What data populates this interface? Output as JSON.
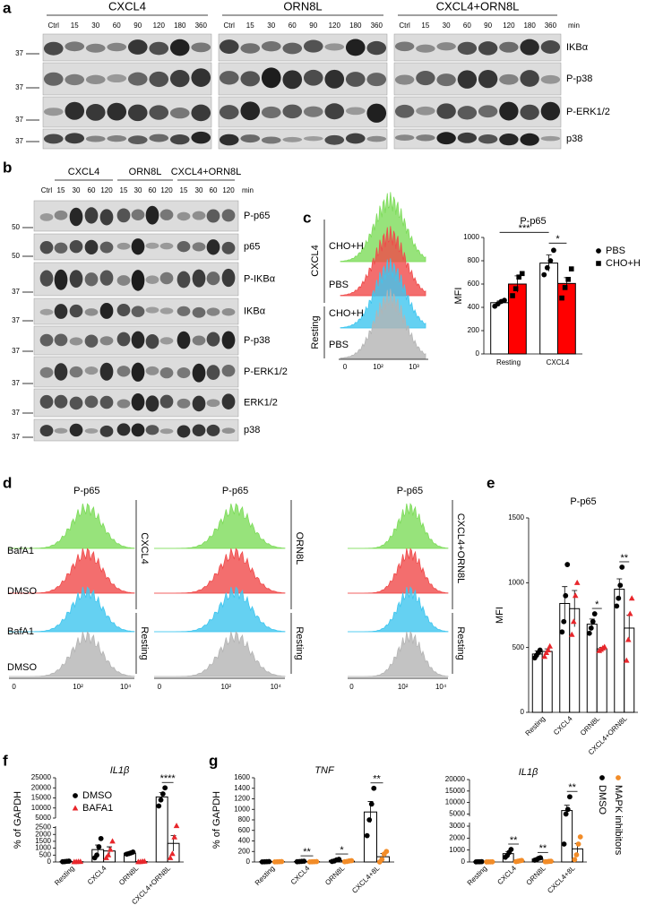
{
  "blot_a": {
    "label": "a",
    "groups": [
      "CXCL4",
      "ORN8L",
      "CXCL4+ORN8L"
    ],
    "lanes": [
      "Ctrl",
      "15",
      "30",
      "60",
      "90",
      "120",
      "180",
      "360"
    ],
    "unit": "min",
    "rows": [
      "IKBα",
      "P-p38",
      "P-ERK1/2",
      "p38"
    ],
    "markers": [
      "37",
      "37",
      "37",
      "37"
    ]
  },
  "blot_b": {
    "label": "b",
    "groups": [
      "CXCL4",
      "ORN8L",
      "CXCL4+ORN8L"
    ],
    "lanes": [
      "Ctrl",
      "15",
      "30",
      "60",
      "120",
      "15",
      "30",
      "60",
      "120",
      "15",
      "30",
      "60",
      "120"
    ],
    "unit": "min",
    "rows": [
      "P-p65",
      "p65",
      "P-IKBα",
      "IKBα",
      "P-p38",
      "P-ERK1/2",
      "ERK1/2",
      "p38"
    ],
    "markers": [
      "50",
      "50",
      "37",
      "37",
      "37",
      "37",
      "37",
      "37"
    ]
  },
  "flow_c": {
    "label": "c",
    "conditions": [
      "CXCL4",
      "Resting"
    ],
    "samples": [
      "CHO+H",
      "PBS",
      "CHO+H",
      "PBS"
    ],
    "xticks": [
      "0",
      "10²",
      "10³"
    ]
  },
  "flow_d": {
    "label": "d",
    "panels": [
      {
        "title": "P-p65",
        "stimulus": "CXCL4",
        "control": "Resting"
      },
      {
        "title": "P-p65",
        "stimulus": "ORN8L",
        "control": "Resting"
      },
      {
        "title": "P-p65",
        "stimulus": "CXCL4+ORN8L",
        "control": "Resting"
      }
    ],
    "samples": [
      "BafA1",
      "DMSO",
      "BafA1",
      "DMSO"
    ],
    "xticks": [
      "0",
      "10²",
      "10⁴"
    ]
  },
  "chart_data": [
    {
      "type": "bar",
      "title": "P-p65",
      "ylabel": "MFI",
      "categories": [
        "Resting",
        "CXCL4"
      ],
      "series": [
        {
          "name": "PBS",
          "fill": "#ffffff",
          "color": "#000000",
          "marker": "circle",
          "values": [
            440,
            780
          ],
          "errors": [
            15,
            70
          ],
          "points": [
            [
              410,
              430,
              450,
              460
            ],
            [
              680,
              740,
              800,
              890
            ]
          ]
        },
        {
          "name": "CHO+H",
          "fill": "#ff0000",
          "color": "#000000",
          "marker": "square",
          "values": [
            600,
            605
          ],
          "errors": [
            70,
            50
          ],
          "points": [
            [
              500,
              560,
              660,
              690
            ],
            [
              480,
              570,
              640,
              730
            ]
          ]
        }
      ],
      "ylim": [
        0,
        1000
      ],
      "yticks": [
        0,
        200,
        400,
        600,
        800,
        1000
      ],
      "legend": "right",
      "significance": [
        {
          "label": "***",
          "between": [
            [
              "Resting",
              "PBS"
            ],
            [
              "CXCL4",
              "PBS"
            ]
          ]
        },
        {
          "label": "*",
          "between": [
            [
              "CXCL4",
              "PBS"
            ],
            [
              "CXCL4",
              "CHO+H"
            ]
          ]
        }
      ]
    },
    {
      "type": "bar",
      "panel": "e",
      "title": "P-p65",
      "ylabel": "MFI",
      "categories": [
        "Resting",
        "CXCL4",
        "ORN8L",
        "CXCL4+ORN8L"
      ],
      "series": [
        {
          "fill": "#ffffff",
          "color": "#000000",
          "marker": "circle",
          "values": [
            450,
            840,
            680,
            950
          ],
          "errors": [
            25,
            130,
            40,
            80
          ],
          "points": [
            [
              420,
              440,
              460,
              480
            ],
            [
              620,
              700,
              900,
              1140
            ],
            [
              610,
              650,
              700,
              760
            ],
            [
              820,
              880,
              980,
              1120
            ]
          ]
        },
        {
          "fill": "#ffffff",
          "color": "#e8262b",
          "marker": "triangle",
          "values": [
            470,
            800,
            490,
            650
          ],
          "errors": [
            20,
            140,
            10,
            100
          ],
          "points": [
            [
              430,
              460,
              480,
              510
            ],
            [
              600,
              700,
              900,
              1000
            ],
            [
              475,
              485,
              495,
              505
            ],
            [
              400,
              560,
              760,
              880
            ]
          ]
        }
      ],
      "ylim": [
        0,
        1500
      ],
      "yticks": [
        0,
        500,
        1000,
        1500
      ],
      "significance": [
        null,
        null,
        "*",
        "**"
      ]
    },
    {
      "type": "bar",
      "panel": "f",
      "title": "IL1β",
      "ylabel": "% of GAPDH",
      "categories": [
        "Resting",
        "CXCL4",
        "ORN8L",
        "CXCL4+ORN8L"
      ],
      "series": [
        {
          "name": "DMSO",
          "fill": "#ffffff",
          "color": "#000000",
          "marker": "circle",
          "values": [
            40,
            900,
            640,
            15500
          ],
          "errors": [
            10,
            330,
            40,
            2100
          ],
          "points": [
            [
              20,
              30,
              50,
              60
            ],
            [
              300,
              500,
              1100,
              1700
            ],
            [
              570,
              610,
              660,
              720
            ],
            [
              11000,
              14000,
              17000,
              20000
            ]
          ]
        },
        {
          "name": "BAFA1",
          "fill": "#ffffff",
          "color": "#e8262b",
          "marker": "triangle",
          "values": [
            20,
            800,
            30,
            1350
          ],
          "errors": [
            5,
            300,
            10,
            560
          ],
          "points": [
            [
              10,
              20,
              25,
              25
            ],
            [
              300,
              500,
              900,
              1500
            ],
            [
              10,
              20,
              40,
              50
            ],
            [
              300,
              600,
              1800,
              2700
            ]
          ]
        }
      ],
      "ylim": [
        0,
        25000
      ],
      "yticks": [
        0,
        500,
        1000,
        1500,
        2000,
        2500,
        5000,
        10000,
        15000,
        20000,
        25000
      ],
      "axis_break": [
        2600,
        5000
      ],
      "legend": "upper left",
      "significance": [
        null,
        null,
        null,
        "****"
      ]
    },
    {
      "type": "bar",
      "panel": "g",
      "title": "TNF",
      "ylabel": "% of GAPDH",
      "categories": [
        "Resting",
        "CXCL4",
        "ORN8L",
        "CXCL4+8L"
      ],
      "series": [
        {
          "fill": "#ffffff",
          "color": "#000000",
          "marker": "circle",
          "values": [
            5,
            10,
            30,
            950
          ],
          "errors": [
            2,
            3,
            12,
            200
          ],
          "points": [
            [
              2,
              4,
              6,
              8
            ],
            [
              5,
              8,
              12,
              15
            ],
            [
              10,
              20,
              40,
              50
            ],
            [
              500,
              800,
              1100,
              1400
            ]
          ]
        },
        {
          "fill": "#ffffff",
          "color": "#f28c28",
          "marker": "circle",
          "values": [
            5,
            5,
            15,
            100
          ],
          "errors": [
            2,
            2,
            6,
            60
          ],
          "points": [
            [
              2,
              4,
              6,
              8
            ],
            [
              2,
              4,
              6,
              8
            ],
            [
              5,
              10,
              20,
              25
            ],
            [
              0,
              50,
              150,
              200
            ]
          ]
        }
      ],
      "ylim": [
        0,
        1600
      ],
      "yticks": [
        0,
        200,
        400,
        600,
        800,
        1000,
        1200,
        1400,
        1600
      ],
      "significance": [
        null,
        "**",
        "*",
        "**"
      ]
    },
    {
      "type": "bar",
      "title": "IL1β",
      "categories": [
        "Resting",
        "CXCL4",
        "ORN8L",
        "CXCL4+8L"
      ],
      "series": [
        {
          "name": "DMSO",
          "fill": "#ffffff",
          "color": "#000000",
          "marker": "circle",
          "values": [
            20,
            700,
            250,
            6500
          ],
          "errors": [
            5,
            180,
            50,
            2300
          ],
          "points": [
            [
              10,
              20,
              20,
              30
            ],
            [
              400,
              550,
              800,
              1050
            ],
            [
              150,
              200,
              300,
              350
            ],
            [
              1500,
              5000,
              7000,
              12500
            ]
          ]
        },
        {
          "name": "MAPK inhibitors",
          "fill": "#ffffff",
          "color": "#f28c28",
          "marker": "circle",
          "values": [
            10,
            80,
            40,
            1100
          ],
          "errors": [
            3,
            25,
            10,
            450
          ],
          "points": [
            [
              5,
              10,
              10,
              15
            ],
            [
              30,
              60,
              100,
              130
            ],
            [
              20,
              30,
              50,
              60
            ],
            [
              200,
              600,
              1500,
              2100
            ]
          ]
        }
      ],
      "ylim": [
        0,
        20000
      ],
      "yticks": [
        0,
        1000,
        2000,
        3000,
        5000,
        10000,
        15000,
        20000
      ],
      "axis_break": [
        3300,
        4000
      ],
      "legend": "right",
      "significance": [
        null,
        "**",
        "**",
        "**"
      ]
    }
  ]
}
